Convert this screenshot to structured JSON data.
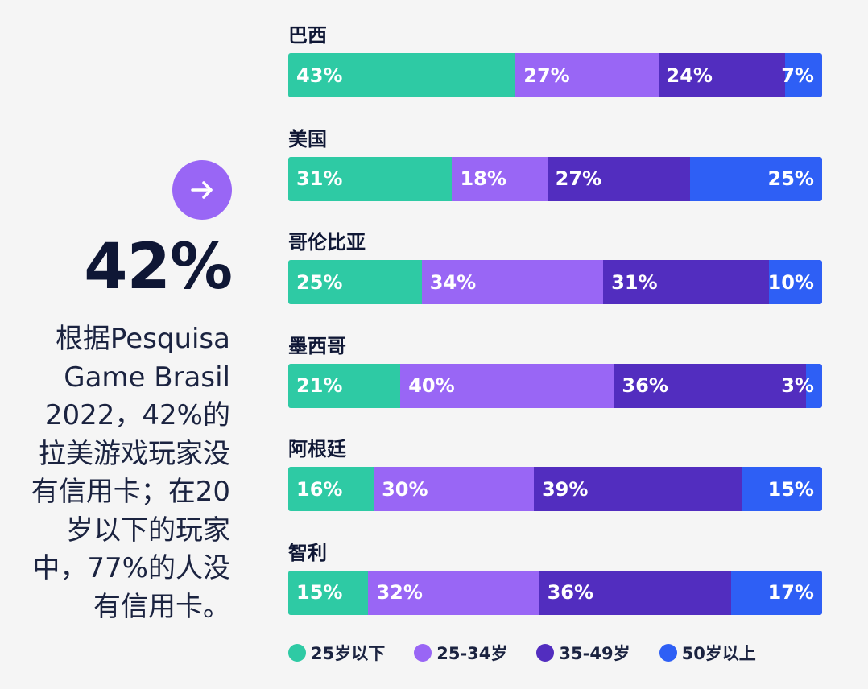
{
  "callout": {
    "arrow_icon": "arrow-right-icon",
    "big_stat": "42%",
    "description": "根据Pesquisa Game Brasil 2022，42%的拉美游戏玩家没有信用卡；在20岁以下的玩家中，77%的人没有信用卡。"
  },
  "chart_data": {
    "type": "bar",
    "orientation": "horizontal",
    "stacked": true,
    "percent": true,
    "categories": [
      "巴西",
      "美国",
      "哥伦比亚",
      "墨西哥",
      "阿根廷",
      "智利"
    ],
    "series": [
      {
        "name": "25岁以下",
        "color": "#2ecaa4",
        "values": [
          43,
          31,
          25,
          21,
          16,
          15
        ]
      },
      {
        "name": "25-34岁",
        "color": "#9966f5",
        "values": [
          27,
          18,
          34,
          40,
          30,
          32
        ]
      },
      {
        "name": "35-49岁",
        "color": "#522dbf",
        "values": [
          24,
          27,
          31,
          36,
          39,
          36
        ]
      },
      {
        "name": "50岁以上",
        "color": "#2e5ff5",
        "values": [
          7,
          25,
          10,
          3,
          15,
          17
        ]
      }
    ],
    "legend_position": "bottom"
  }
}
